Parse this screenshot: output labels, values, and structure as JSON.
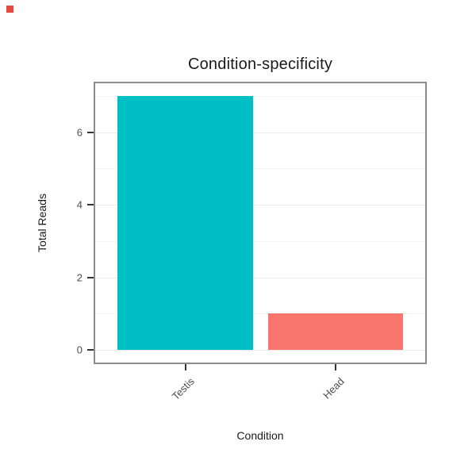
{
  "chart_data": {
    "type": "bar",
    "title": "Condition-specificity",
    "xlabel": "Condition",
    "ylabel": "Total Reads",
    "categories": [
      "Testis",
      "Head"
    ],
    "values": [
      7,
      1
    ],
    "bar_colors": [
      "#00BFC4",
      "#F8766D"
    ],
    "ylim": [
      -0.35,
      7.35
    ],
    "yticks": [
      0,
      2,
      4,
      6
    ],
    "grid_major": [
      0,
      2,
      4,
      6
    ],
    "grid_minor": [
      1,
      3,
      5,
      7
    ],
    "legend": "none",
    "bar_width_frac": 0.9,
    "x_expand": 0.6,
    "panel_border_color": "#8c8c8c",
    "grid_major_color": "#ebebeb",
    "grid_minor_color": "#f5f5f5",
    "tick_color": "#333333"
  },
  "decorations": {
    "corner_dot_color": "#e8483f"
  }
}
